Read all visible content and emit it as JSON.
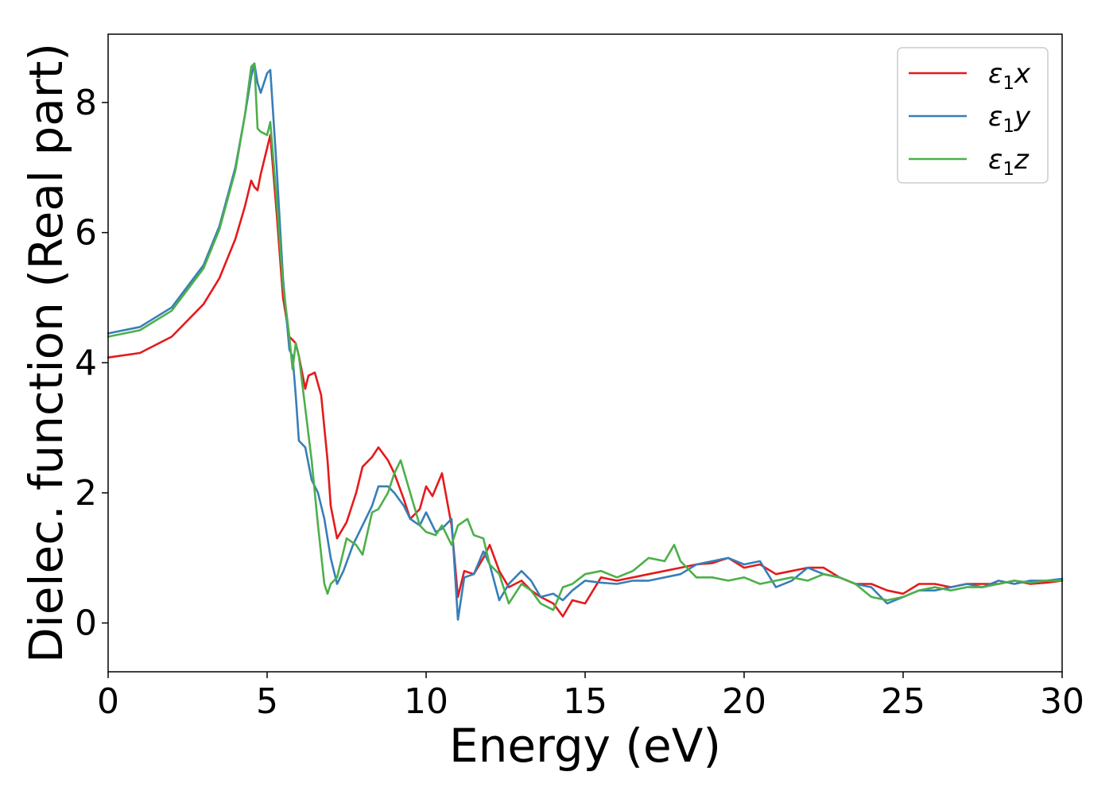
{
  "chart_data": {
    "type": "line",
    "title": "",
    "xlabel": "Energy (eV)",
    "ylabel": "Dielec. function (Real part)",
    "xlim": [
      0,
      30
    ],
    "ylim": [
      -0.75,
      9.05
    ],
    "xticks": [
      0,
      5,
      10,
      15,
      20,
      25,
      30
    ],
    "xtick_labels": [
      "0",
      "5",
      "10",
      "15",
      "20",
      "25",
      "30"
    ],
    "yticks": [
      0,
      2,
      4,
      6,
      8
    ],
    "ytick_labels": [
      "0",
      "2",
      "4",
      "6",
      "8"
    ],
    "grid": false,
    "legend_position": "top-right",
    "series": [
      {
        "name": "ε₁x",
        "label_base": "ε",
        "label_sub": "1",
        "label_tail": "x",
        "color": "#e41a1c",
        "x": [
          0,
          1,
          2,
          3,
          3.5,
          4,
          4.3,
          4.5,
          4.6,
          4.7,
          4.8,
          5.0,
          5.1,
          5.3,
          5.5,
          5.7,
          5.9,
          6.0,
          6.2,
          6.3,
          6.5,
          6.7,
          6.9,
          7.0,
          7.2,
          7.5,
          7.8,
          8.0,
          8.3,
          8.5,
          8.8,
          9.0,
          9.3,
          9.5,
          9.8,
          10.0,
          10.2,
          10.5,
          10.8,
          11.0,
          11.2,
          11.5,
          11.8,
          12.0,
          12.3,
          12.6,
          13.0,
          13.3,
          13.6,
          14.0,
          14.3,
          14.6,
          15.0,
          15.5,
          16.0,
          16.5,
          17.0,
          17.5,
          18.0,
          18.5,
          19.0,
          19.5,
          20.0,
          20.5,
          21.0,
          21.5,
          22.0,
          22.5,
          23.0,
          23.5,
          24.0,
          24.5,
          25.0,
          25.5,
          26.0,
          26.5,
          27.0,
          27.5,
          28.0,
          28.5,
          29.0,
          29.5,
          30.0
        ],
        "y": [
          4.08,
          4.15,
          4.4,
          4.9,
          5.3,
          5.9,
          6.4,
          6.8,
          6.7,
          6.65,
          6.9,
          7.3,
          7.5,
          6.3,
          5.0,
          4.4,
          4.3,
          4.1,
          3.6,
          3.8,
          3.85,
          3.5,
          2.5,
          1.8,
          1.3,
          1.55,
          2.0,
          2.4,
          2.55,
          2.7,
          2.5,
          2.3,
          1.9,
          1.6,
          1.75,
          2.1,
          1.95,
          2.3,
          1.5,
          0.4,
          0.8,
          0.75,
          1.0,
          1.2,
          0.8,
          0.55,
          0.65,
          0.5,
          0.4,
          0.3,
          0.1,
          0.35,
          0.3,
          0.7,
          0.65,
          0.7,
          0.75,
          0.8,
          0.85,
          0.9,
          0.92,
          1.0,
          0.85,
          0.9,
          0.75,
          0.8,
          0.85,
          0.85,
          0.7,
          0.6,
          0.6,
          0.5,
          0.45,
          0.6,
          0.6,
          0.55,
          0.6,
          0.6,
          0.6,
          0.65,
          0.6,
          0.62,
          0.65
        ]
      },
      {
        "name": "ε₁y",
        "label_base": "ε",
        "label_sub": "1",
        "label_tail": "y",
        "color": "#377eb8",
        "x": [
          0,
          1,
          2,
          3,
          3.5,
          4,
          4.3,
          4.5,
          4.6,
          4.7,
          4.8,
          5.0,
          5.1,
          5.3,
          5.5,
          5.7,
          5.8,
          5.9,
          6.0,
          6.2,
          6.4,
          6.6,
          6.8,
          7.0,
          7.2,
          7.4,
          7.7,
          8.0,
          8.3,
          8.5,
          8.8,
          9.0,
          9.3,
          9.5,
          9.8,
          10.0,
          10.3,
          10.5,
          10.8,
          11.0,
          11.2,
          11.5,
          11.8,
          12.0,
          12.3,
          12.6,
          13.0,
          13.3,
          13.6,
          14.0,
          14.3,
          14.6,
          15.0,
          15.5,
          16.0,
          16.5,
          17.0,
          17.5,
          18.0,
          18.5,
          19.0,
          19.5,
          20.0,
          20.5,
          21.0,
          21.5,
          22.0,
          22.5,
          23.0,
          23.5,
          24.0,
          24.5,
          25.0,
          25.5,
          26.0,
          26.5,
          27.0,
          27.5,
          28.0,
          28.5,
          29.0,
          29.5,
          30.0
        ],
        "y": [
          4.45,
          4.55,
          4.85,
          5.5,
          6.1,
          7.0,
          7.8,
          8.4,
          8.6,
          8.3,
          8.15,
          8.45,
          8.5,
          7.0,
          5.3,
          4.2,
          4.1,
          3.5,
          2.8,
          2.7,
          2.2,
          2.0,
          1.6,
          1.0,
          0.6,
          0.8,
          1.2,
          1.5,
          1.8,
          2.1,
          2.1,
          2.0,
          1.8,
          1.6,
          1.5,
          1.7,
          1.4,
          1.45,
          1.6,
          0.05,
          0.7,
          0.75,
          1.1,
          0.9,
          0.35,
          0.6,
          0.8,
          0.65,
          0.4,
          0.45,
          0.35,
          0.5,
          0.65,
          0.62,
          0.6,
          0.65,
          0.65,
          0.7,
          0.75,
          0.9,
          0.95,
          1.0,
          0.9,
          0.95,
          0.55,
          0.65,
          0.85,
          0.75,
          0.7,
          0.6,
          0.55,
          0.3,
          0.4,
          0.5,
          0.5,
          0.55,
          0.6,
          0.55,
          0.65,
          0.6,
          0.65,
          0.65,
          0.68
        ]
      },
      {
        "name": "ε₁z",
        "label_base": "ε",
        "label_sub": "1",
        "label_tail": "z",
        "color": "#4daf4a",
        "x": [
          0,
          1,
          2,
          3,
          3.5,
          4,
          4.3,
          4.5,
          4.6,
          4.7,
          4.8,
          5.0,
          5.1,
          5.3,
          5.5,
          5.7,
          5.8,
          5.9,
          6.0,
          6.2,
          6.4,
          6.6,
          6.8,
          6.9,
          7.0,
          7.2,
          7.5,
          7.8,
          8.0,
          8.3,
          8.5,
          8.8,
          9.0,
          9.2,
          9.5,
          9.8,
          10.0,
          10.3,
          10.5,
          10.8,
          11.0,
          11.3,
          11.5,
          11.8,
          12.0,
          12.3,
          12.6,
          13.0,
          13.3,
          13.6,
          14.0,
          14.3,
          14.6,
          15.0,
          15.5,
          16.0,
          16.5,
          17.0,
          17.5,
          17.8,
          18.0,
          18.5,
          19.0,
          19.5,
          20.0,
          20.5,
          21.0,
          21.5,
          22.0,
          22.5,
          23.0,
          23.5,
          24.0,
          24.5,
          25.0,
          25.5,
          26.0,
          26.5,
          27.0,
          27.5,
          28.0,
          28.5,
          29.0,
          29.5,
          30.0
        ],
        "y": [
          4.4,
          4.5,
          4.8,
          5.45,
          6.05,
          6.95,
          7.8,
          8.55,
          8.6,
          7.6,
          7.55,
          7.5,
          7.7,
          6.5,
          5.2,
          4.4,
          3.9,
          4.3,
          4.1,
          3.3,
          2.5,
          1.5,
          0.6,
          0.45,
          0.6,
          0.7,
          1.3,
          1.2,
          1.05,
          1.7,
          1.75,
          2.0,
          2.3,
          2.5,
          2.0,
          1.5,
          1.4,
          1.35,
          1.5,
          1.2,
          1.5,
          1.6,
          1.35,
          1.3,
          0.9,
          0.75,
          0.3,
          0.6,
          0.5,
          0.3,
          0.2,
          0.55,
          0.6,
          0.75,
          0.8,
          0.7,
          0.8,
          1.0,
          0.95,
          1.2,
          0.95,
          0.7,
          0.7,
          0.65,
          0.7,
          0.6,
          0.65,
          0.7,
          0.65,
          0.75,
          0.7,
          0.6,
          0.4,
          0.35,
          0.4,
          0.5,
          0.55,
          0.5,
          0.55,
          0.55,
          0.6,
          0.65,
          0.62,
          0.65,
          0.65
        ]
      }
    ]
  }
}
